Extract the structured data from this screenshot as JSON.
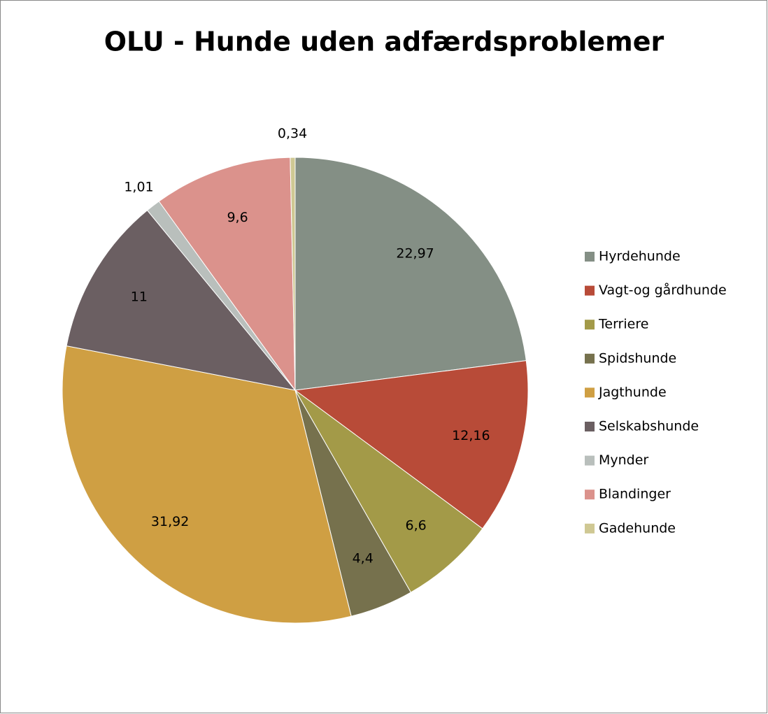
{
  "chart_data": {
    "type": "pie",
    "title": "OLU - Hunde uden adfærdsproblemer",
    "categories": [
      "Hyrdehunde",
      "Vagt-og gårdhunde",
      "Terriere",
      "Spidshunde",
      "Jagthunde",
      "Selskabshunde",
      "Mynder",
      "Blandinger",
      "Gadehunde"
    ],
    "values": [
      22.97,
      12.16,
      6.6,
      4.4,
      31.92,
      11,
      1.01,
      9.6,
      0.34
    ],
    "value_labels": [
      "22,97",
      "12,16",
      "6,6",
      "4,4",
      "31,92",
      "11",
      "1,01",
      "9,6",
      "0,34"
    ],
    "colors": [
      "#848f85",
      "#b84b38",
      "#a39a48",
      "#76714d",
      "#cf9f43",
      "#6b5f62",
      "#b9bfbc",
      "#db928c",
      "#cfc893"
    ],
    "legend": "right"
  }
}
